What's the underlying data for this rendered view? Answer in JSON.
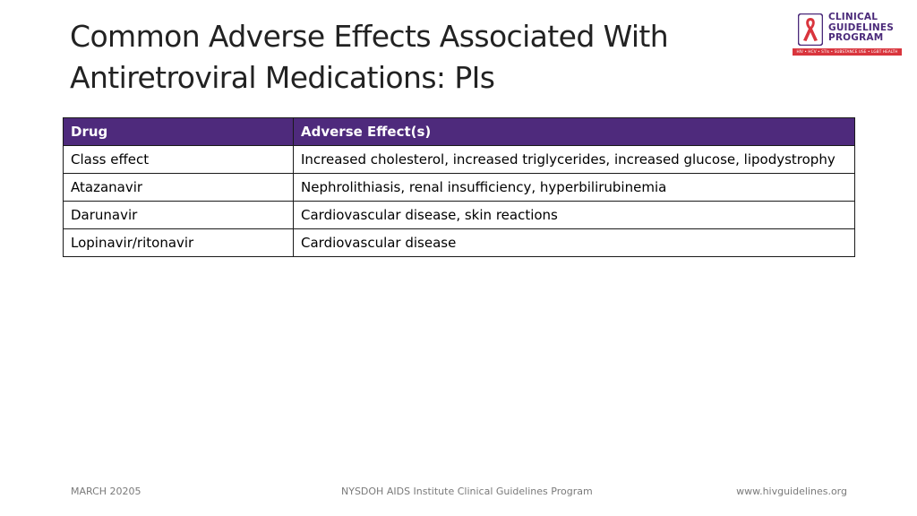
{
  "slide": {
    "title_line1": "Common Adverse Effects Associated With",
    "title_line2": "Antiretroviral Medications: PIs"
  },
  "logo": {
    "line1": "CLINICAL",
    "line2": "GUIDELINES",
    "line3": "PROGRAM",
    "tagline": "HIV • HCV • STIs • SUBSTANCE USE • LGBT HEALTH",
    "colors": {
      "primary": "#4b2a7a",
      "accent": "#d9353d"
    }
  },
  "table": {
    "headers": [
      "Drug",
      "Adverse Effect(s)"
    ],
    "header_color": "#4e2a7c",
    "rows": [
      {
        "drug": "Class effect",
        "effect": "Increased cholesterol, increased triglycerides, increased glucose, lipodystrophy"
      },
      {
        "drug": "Atazanavir",
        "effect": "Nephrolithiasis, renal insufficiency, hyperbilirubinemia"
      },
      {
        "drug": "Darunavir",
        "effect": "Cardiovascular disease, skin reactions"
      },
      {
        "drug": "Lopinavir/ritonavir",
        "effect": "Cardiovascular disease"
      }
    ]
  },
  "footer": {
    "date": "MARCH 20205",
    "organization": "NYSDOH AIDS Institute Clinical Guidelines Program",
    "website": "www.hivguidelines.org"
  }
}
